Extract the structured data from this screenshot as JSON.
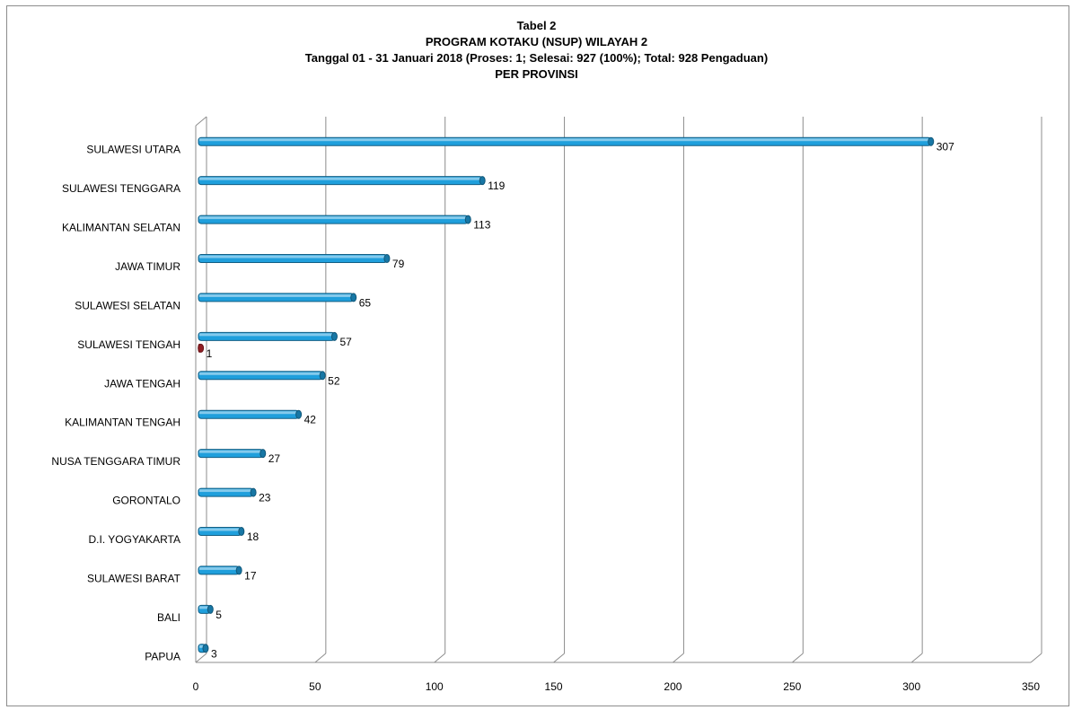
{
  "chart_data": {
    "type": "bar",
    "orientation": "horizontal",
    "title_lines": [
      "Tabel 2",
      "PROGRAM KOTAKU (NSUP) WILAYAH 2",
      "Tanggal 01  - 31 Januari 2018 (Proses: 1; Selesai: 927 (100%); Total: 928 Pengaduan)",
      "PER PROVINSI"
    ],
    "categories": [
      "SULAWESI UTARA",
      "SULAWESI TENGGARA",
      "KALIMANTAN SELATAN",
      "JAWA TIMUR",
      "SULAWESI SELATAN",
      "SULAWESI TENGAH",
      "JAWA TENGAH",
      "KALIMANTAN TENGAH",
      "NUSA TENGGARA  TIMUR",
      "GORONTALO",
      "D.I. YOGYAKARTA",
      "SULAWESI BARAT",
      "BALI",
      "PAPUA"
    ],
    "series": [
      {
        "color": "#1f9fdc",
        "values": [
          307,
          119,
          113,
          79,
          65,
          57,
          52,
          42,
          27,
          23,
          18,
          17,
          5,
          3
        ]
      },
      {
        "color": "#c0272d",
        "values": [
          null,
          null,
          null,
          null,
          null,
          1,
          null,
          null,
          null,
          null,
          null,
          null,
          null,
          null
        ]
      }
    ],
    "xlim": [
      0,
      350
    ],
    "xticks": [
      0,
      50,
      100,
      150,
      200,
      250,
      300,
      350
    ],
    "grid": true,
    "legend": "none"
  }
}
